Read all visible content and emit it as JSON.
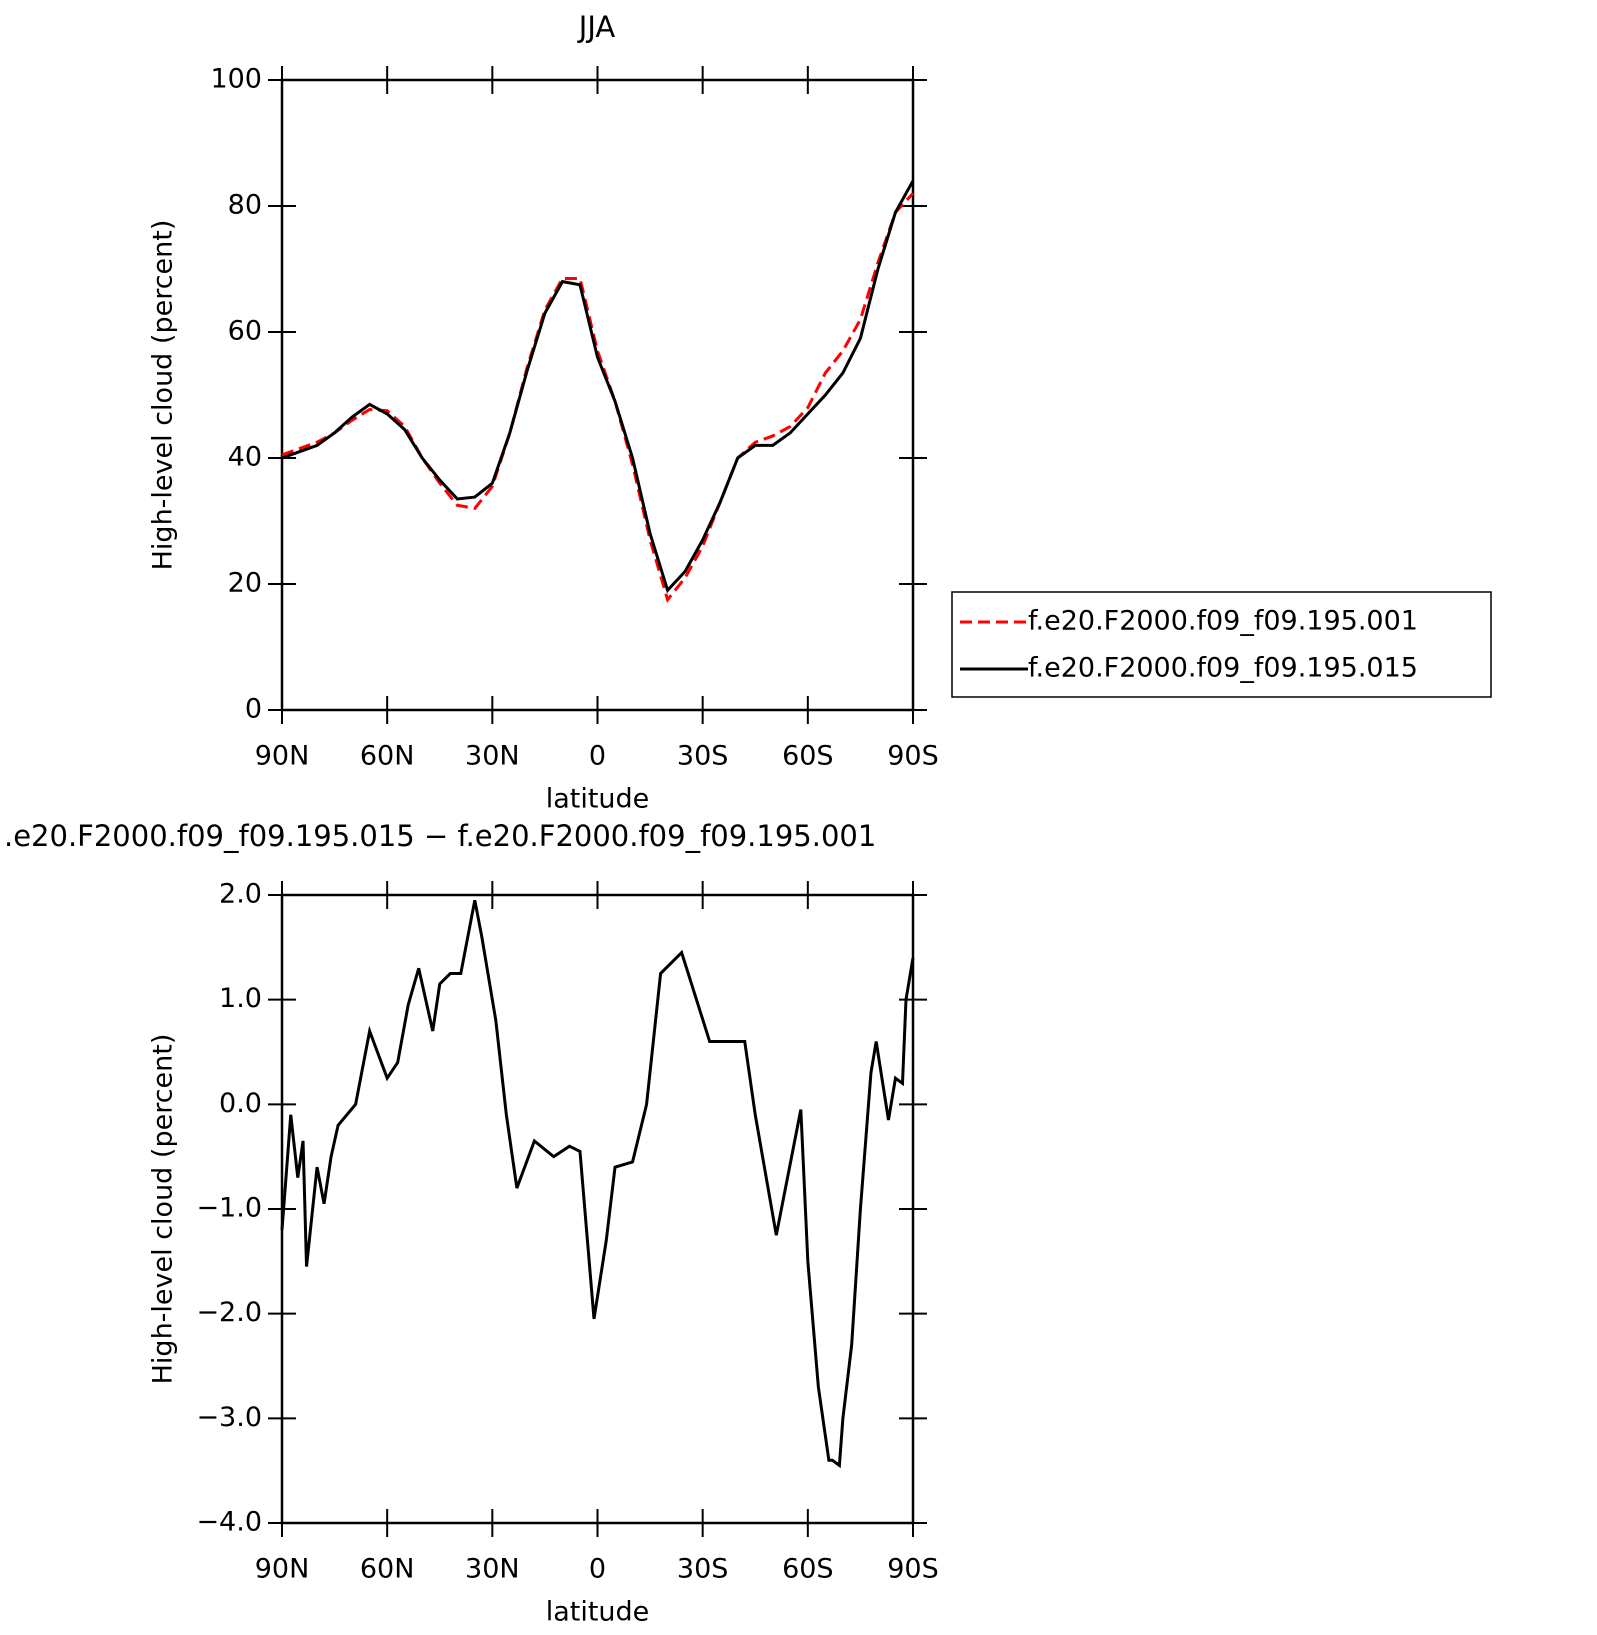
{
  "chart_data": [
    {
      "type": "line",
      "title": "JJA",
      "xlabel": "latitude",
      "ylabel": "High-level cloud (percent)",
      "x": [
        90,
        85,
        80,
        75,
        70,
        65,
        60,
        55,
        50,
        45,
        40,
        35,
        30,
        25,
        20,
        15,
        10,
        5,
        0,
        -5,
        -10,
        -15,
        -20,
        -25,
        -30,
        -35,
        -40,
        -45,
        -50,
        -55,
        -60,
        -65,
        -70,
        -75,
        -80,
        -85,
        -90
      ],
      "series": [
        {
          "name": "f.e20.F2000.f09_f09.195.001",
          "color": "#ff0000",
          "dash": "dashed",
          "values": [
            40.5,
            41.5,
            42.5,
            44,
            46,
            47.7,
            47.5,
            45,
            40,
            36,
            32.5,
            32,
            35.5,
            44,
            54.5,
            63.5,
            68.5,
            68.5,
            57,
            49,
            39,
            27,
            17.5,
            21,
            26,
            33,
            40,
            42.5,
            43.5,
            45,
            48,
            53.5,
            57,
            62,
            71,
            79,
            82
          ]
        },
        {
          "name": "f.e20.F2000.f09_f09.195.015",
          "color": "#000000",
          "dash": "solid",
          "values": [
            40,
            41,
            42,
            44,
            46.5,
            48.5,
            47,
            44.5,
            40,
            36.5,
            33.5,
            33.8,
            36,
            44,
            54,
            63,
            68,
            67.5,
            56,
            49,
            40,
            28,
            19,
            22,
            27,
            33,
            40,
            42,
            42,
            44,
            47,
            50,
            53.5,
            59,
            70,
            79,
            84
          ]
        }
      ],
      "xlim": [
        90,
        -90
      ],
      "xticks": [
        {
          "value": 90,
          "label": "90N"
        },
        {
          "value": 60,
          "label": "60N"
        },
        {
          "value": 30,
          "label": "30N"
        },
        0,
        {
          "value": -30,
          "label": "30S"
        },
        {
          "value": -60,
          "label": "60S"
        },
        {
          "value": -90,
          "label": "90S"
        }
      ],
      "ylim": [
        0,
        100
      ],
      "yticks": [
        0,
        20,
        40,
        60,
        80,
        100
      ],
      "legend": "right"
    },
    {
      "type": "line",
      "title": ".e20.F2000.f09_f09.195.015 − f.e20.F2000.f09_f09.195.001",
      "xlabel": "latitude",
      "ylabel": "High-level cloud (percent)",
      "x": [
        90,
        87.5,
        85.5,
        84,
        83,
        80,
        78,
        76,
        74,
        69,
        65,
        60,
        57,
        54,
        51,
        47,
        45,
        42,
        39,
        35,
        33,
        29,
        26,
        23,
        18,
        12.5,
        8,
        5,
        1,
        -2.5,
        -5,
        -10,
        -14,
        -18,
        -24,
        -32,
        -38,
        -42,
        -45,
        -51,
        -58,
        -60,
        -63,
        -66,
        -67,
        -69,
        -70,
        -72.5,
        -75,
        -78,
        -79.5,
        -83,
        -85,
        -87,
        -88,
        -90
      ],
      "series": [
        {
          "name": null,
          "color": "#000000",
          "dash": "solid",
          "values": [
            -1.2,
            -0.1,
            -0.7,
            -0.35,
            -1.55,
            -0.6,
            -0.95,
            -0.5,
            -0.2,
            0,
            0.7,
            0.25,
            0.4,
            0.95,
            1.3,
            0.7,
            1.15,
            1.25,
            1.25,
            1.95,
            1.6,
            0.8,
            -0.1,
            -0.8,
            -0.35,
            -0.5,
            -0.4,
            -0.45,
            -2.05,
            -1.3,
            -0.6,
            -0.55,
            0,
            1.25,
            1.45,
            0.6,
            0.6,
            0.6,
            -0.1,
            -1.25,
            -0.05,
            -1.5,
            -2.7,
            -3.4,
            -3.4,
            -3.45,
            -3.0,
            -2.3,
            -1.0,
            0.3,
            0.6,
            -0.15,
            0.25,
            0.2,
            1.0,
            1.4
          ]
        }
      ],
      "xlim": [
        90,
        -90
      ],
      "xticks": [
        {
          "value": 90,
          "label": "90N"
        },
        {
          "value": 60,
          "label": "60N"
        },
        {
          "value": 30,
          "label": "30N"
        },
        0,
        {
          "value": -30,
          "label": "30S"
        },
        {
          "value": -60,
          "label": "60S"
        },
        {
          "value": -90,
          "label": "90S"
        }
      ],
      "ylim": [
        -4,
        2
      ],
      "yticks": [
        {
          "value": -4,
          "label": "−4.0"
        },
        {
          "value": -3,
          "label": "−3.0"
        },
        {
          "value": -2,
          "label": "−2.0"
        },
        {
          "value": -1,
          "label": "−1.0"
        },
        {
          "value": 0,
          "label": "0.0"
        },
        {
          "value": 1,
          "label": "1.0"
        },
        {
          "value": 2,
          "label": "2.0"
        }
      ]
    }
  ]
}
